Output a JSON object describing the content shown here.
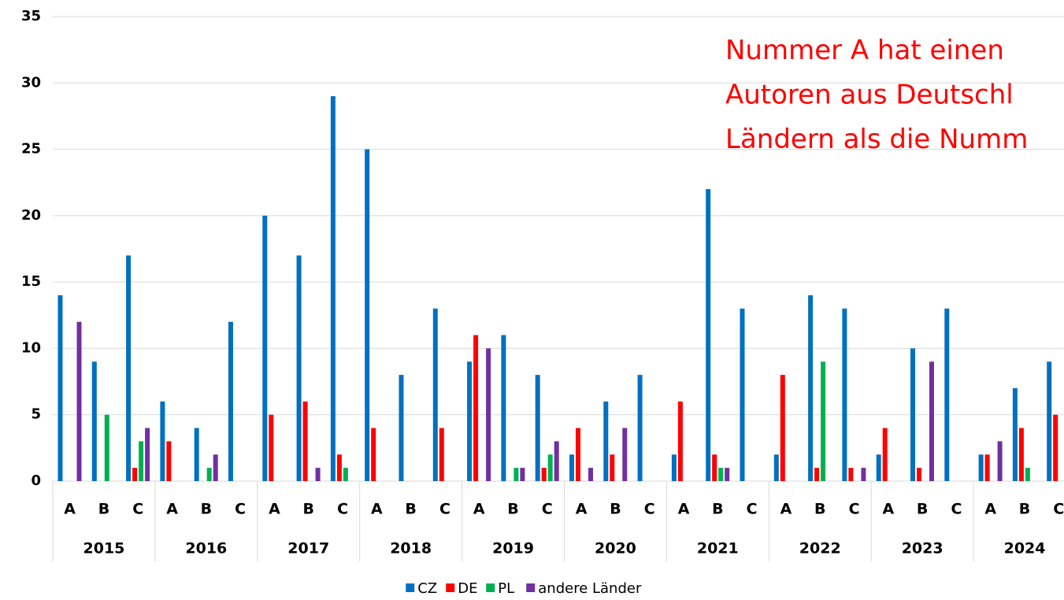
{
  "chart_data": {
    "type": "bar",
    "categories": [
      "A",
      "B",
      "C",
      "A",
      "B",
      "C",
      "A",
      "B",
      "C",
      "A",
      "B",
      "C",
      "A",
      "B",
      "C",
      "A",
      "B",
      "C",
      "A",
      "B",
      "C",
      "A",
      "B",
      "C",
      "A",
      "B",
      "C",
      "A",
      "B",
      "C"
    ],
    "groups": [
      "2015",
      "2016",
      "2017",
      "2018",
      "2019",
      "2020",
      "2021",
      "2022",
      "2023",
      "2024"
    ],
    "series": [
      {
        "name": "CZ",
        "color": "#0070c0",
        "values": [
          14,
          9,
          17,
          6,
          4,
          12,
          20,
          17,
          29,
          25,
          8,
          13,
          9,
          11,
          8,
          2,
          6,
          8,
          2,
          22,
          13,
          2,
          14,
          13,
          2,
          10,
          13,
          2,
          7,
          9
        ]
      },
      {
        "name": "DE",
        "color": "#ff0000",
        "values": [
          0,
          0,
          1,
          3,
          0,
          0,
          5,
          6,
          2,
          4,
          0,
          4,
          11,
          0,
          1,
          4,
          2,
          0,
          6,
          2,
          0,
          8,
          1,
          1,
          4,
          1,
          0,
          2,
          4,
          5
        ]
      },
      {
        "name": "PL",
        "color": "#00b050",
        "values": [
          0,
          5,
          3,
          0,
          1,
          0,
          0,
          0,
          1,
          0,
          0,
          0,
          0,
          1,
          2,
          0,
          0,
          0,
          0,
          1,
          0,
          0,
          9,
          0,
          0,
          0,
          0,
          0,
          1,
          null
        ]
      },
      {
        "name": "andere Länder",
        "color": "#7030a0",
        "values": [
          12,
          0,
          4,
          0,
          2,
          0,
          0,
          1,
          0,
          0,
          0,
          0,
          10,
          1,
          3,
          1,
          4,
          0,
          0,
          1,
          0,
          0,
          0,
          1,
          0,
          9,
          0,
          3,
          0,
          null
        ]
      }
    ],
    "annotation": [
      "Nummer A hat einen",
      "Autoren aus Deutschl",
      "Ländern als die Numm"
    ],
    "ylim": [
      0,
      35
    ],
    "yticks": [
      0,
      5,
      10,
      15,
      20,
      25,
      30,
      35
    ],
    "grid": true,
    "legend": "bottom"
  }
}
